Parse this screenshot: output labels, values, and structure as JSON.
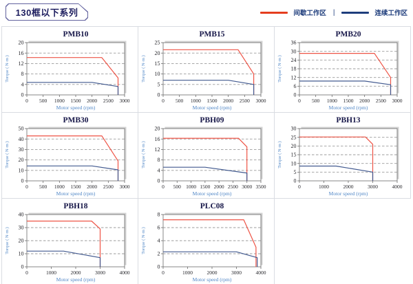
{
  "page": {
    "title": "130框以下系列"
  },
  "legend": {
    "intermittent_label": "间歇工作区",
    "continuous_label": "连续工作区",
    "separator": "|"
  },
  "colors": {
    "red_line": "#ee5345",
    "blue_line": "#41598f",
    "legend_red": "#e53d1e",
    "legend_blue": "#1e3d7c",
    "axis_label_blue": "#4f86c6",
    "tick_text": "#26262b",
    "chart_title": "#151547",
    "grid_dash": "#9b9b9b",
    "plot_border": "#6a6a6a",
    "plot_shadow": "#d2d2d2",
    "cell_border": "#d9dce2"
  },
  "chart_data": [
    {
      "type": "line",
      "title": "PMB10",
      "xlabel": "Motor speed (rpm)",
      "ylabel": "Torque ( N·m )",
      "xlim": [
        0,
        3000
      ],
      "xticks": [
        0,
        500,
        1000,
        1500,
        2000,
        2500,
        3000
      ],
      "ylim": [
        0,
        20
      ],
      "yticks": [
        0,
        4,
        8,
        12,
        16,
        20
      ],
      "grid": "dashed-horizontal",
      "legend_position": "none",
      "series": [
        {
          "name": "间歇工作区",
          "color_key": "red_line",
          "points": [
            [
              0,
              14.3
            ],
            [
              2300,
              14.3
            ],
            [
              2800,
              6.5
            ],
            [
              2800,
              0
            ]
          ]
        },
        {
          "name": "连续工作区",
          "color_key": "blue_line",
          "points": [
            [
              0,
              4.8
            ],
            [
              2000,
              4.8
            ],
            [
              2800,
              3.2
            ],
            [
              2800,
              0
            ]
          ]
        }
      ]
    },
    {
      "type": "line",
      "title": "PMB15",
      "xlabel": "Motor speed (rpm)",
      "ylabel": "Torque ( N·m )",
      "xlim": [
        0,
        3000
      ],
      "xticks": [
        0,
        500,
        1000,
        1500,
        2000,
        2500,
        3000
      ],
      "ylim": [
        0,
        25
      ],
      "yticks": [
        0,
        5,
        10,
        15,
        20,
        25
      ],
      "grid": "dashed-horizontal",
      "legend_position": "none",
      "series": [
        {
          "name": "间歇工作区",
          "color_key": "red_line",
          "points": [
            [
              0,
              21.6
            ],
            [
              2300,
              21.6
            ],
            [
              2780,
              10
            ],
            [
              2780,
              0
            ]
          ]
        },
        {
          "name": "连续工作区",
          "color_key": "blue_line",
          "points": [
            [
              0,
              7
            ],
            [
              2000,
              7
            ],
            [
              2780,
              5
            ],
            [
              2780,
              0
            ]
          ]
        }
      ]
    },
    {
      "type": "line",
      "title": "PMB20",
      "xlabel": "Motor speed (rpm)",
      "ylabel": "Torque ( N·m )",
      "xlim": [
        0,
        3000
      ],
      "xticks": [
        0,
        500,
        1000,
        1500,
        2000,
        2500,
        3000
      ],
      "ylim": [
        0,
        36
      ],
      "yticks": [
        0,
        6,
        12,
        18,
        24,
        30,
        36
      ],
      "grid": "dashed-horizontal",
      "legend_position": "none",
      "series": [
        {
          "name": "间歇工作区",
          "color_key": "red_line",
          "points": [
            [
              0,
              28.6
            ],
            [
              2300,
              28.6
            ],
            [
              2800,
              12
            ],
            [
              2800,
              0
            ]
          ]
        },
        {
          "name": "连续工作区",
          "color_key": "blue_line",
          "points": [
            [
              0,
              9.5
            ],
            [
              2000,
              9.5
            ],
            [
              2800,
              7
            ],
            [
              2800,
              0
            ]
          ]
        }
      ]
    },
    {
      "type": "line",
      "title": "PMB30",
      "xlabel": "Motor speed (rpm)",
      "ylabel": "Torque ( N·m )",
      "xlim": [
        0,
        3000
      ],
      "xticks": [
        0,
        500,
        1000,
        1500,
        2000,
        2500,
        3000
      ],
      "ylim": [
        0,
        50
      ],
      "yticks": [
        0,
        10,
        20,
        30,
        40,
        50
      ],
      "grid": "dashed-horizontal",
      "legend_position": "none",
      "series": [
        {
          "name": "间歇工作区",
          "color_key": "red_line",
          "points": [
            [
              0,
              43
            ],
            [
              2300,
              43
            ],
            [
              2800,
              19
            ],
            [
              2800,
              0
            ]
          ]
        },
        {
          "name": "连续工作区",
          "color_key": "blue_line",
          "points": [
            [
              0,
              14.3
            ],
            [
              2000,
              14.3
            ],
            [
              2800,
              10.5
            ],
            [
              2800,
              0
            ]
          ]
        }
      ]
    },
    {
      "type": "line",
      "title": "PBH09",
      "xlabel": "Motor speed (rpm)",
      "ylabel": "Torque ( N·m )",
      "xlim": [
        0,
        3500
      ],
      "xticks": [
        0,
        500,
        1000,
        1500,
        2000,
        2500,
        3000,
        3500
      ],
      "ylim": [
        0,
        20
      ],
      "yticks": [
        0,
        4,
        8,
        12,
        16,
        20
      ],
      "grid": "dashed-horizontal",
      "legend_position": "none",
      "series": [
        {
          "name": "间歇工作区",
          "color_key": "red_line",
          "points": [
            [
              0,
              16.3
            ],
            [
              2700,
              16.3
            ],
            [
              3000,
              13
            ],
            [
              3000,
              0
            ]
          ]
        },
        {
          "name": "连续工作区",
          "color_key": "blue_line",
          "points": [
            [
              0,
              5.2
            ],
            [
              1500,
              5.2
            ],
            [
              3000,
              3
            ],
            [
              3000,
              0
            ]
          ]
        }
      ]
    },
    {
      "type": "line",
      "title": "PBH13",
      "xlabel": "Motor speed (rpm)",
      "ylabel": "Torque ( N·m )",
      "xlim": [
        0,
        4000
      ],
      "xticks": [
        0,
        1000,
        2000,
        3000,
        4000
      ],
      "ylim": [
        0,
        30
      ],
      "yticks": [
        0,
        5,
        10,
        15,
        20,
        25,
        30
      ],
      "grid": "dashed-horizontal",
      "legend_position": "none",
      "series": [
        {
          "name": "间歇工作区",
          "color_key": "red_line",
          "points": [
            [
              0,
              25.2
            ],
            [
              2700,
              25.2
            ],
            [
              3000,
              21
            ],
            [
              3000,
              0
            ]
          ]
        },
        {
          "name": "连续工作区",
          "color_key": "blue_line",
          "points": [
            [
              0,
              8.5
            ],
            [
              1500,
              8.5
            ],
            [
              3000,
              5
            ],
            [
              3000,
              0
            ]
          ]
        }
      ]
    },
    {
      "type": "line",
      "title": "PBH18",
      "xlabel": "Motor speed (rpm)",
      "ylabel": "Torque ( N·m )",
      "xlim": [
        0,
        4000
      ],
      "xticks": [
        0,
        1000,
        2000,
        3000,
        4000
      ],
      "ylim": [
        0,
        40
      ],
      "yticks": [
        0,
        10,
        20,
        30,
        40
      ],
      "grid": "dashed-horizontal",
      "legend_position": "none",
      "series": [
        {
          "name": "间歇工作区",
          "color_key": "red_line",
          "points": [
            [
              0,
              35
            ],
            [
              2650,
              35
            ],
            [
              3000,
              29
            ],
            [
              3000,
              0
            ]
          ]
        },
        {
          "name": "连续工作区",
          "color_key": "blue_line",
          "points": [
            [
              0,
              12
            ],
            [
              1500,
              12
            ],
            [
              3000,
              7
            ],
            [
              3000,
              0
            ]
          ]
        }
      ]
    },
    {
      "type": "line",
      "title": "PLC08",
      "xlabel": "Motor speed (rpm)",
      "ylabel": "Torque ( N·m )",
      "xlim": [
        0,
        4000
      ],
      "xticks": [
        0,
        1000,
        2000,
        3000,
        4000
      ],
      "ylim": [
        0,
        8
      ],
      "yticks": [
        0,
        2,
        4,
        6,
        8
      ],
      "grid": "dashed-horizontal",
      "legend_position": "none",
      "series": [
        {
          "name": "间歇工作区",
          "color_key": "red_line",
          "points": [
            [
              0,
              7.2
            ],
            [
              3300,
              7.2
            ],
            [
              3800,
              3
            ],
            [
              3800,
              0
            ]
          ]
        },
        {
          "name": "连续工作区",
          "color_key": "blue_line",
          "points": [
            [
              0,
              2.3
            ],
            [
              3000,
              2.3
            ],
            [
              3850,
              1.4
            ],
            [
              3850,
              0
            ]
          ]
        }
      ]
    }
  ]
}
